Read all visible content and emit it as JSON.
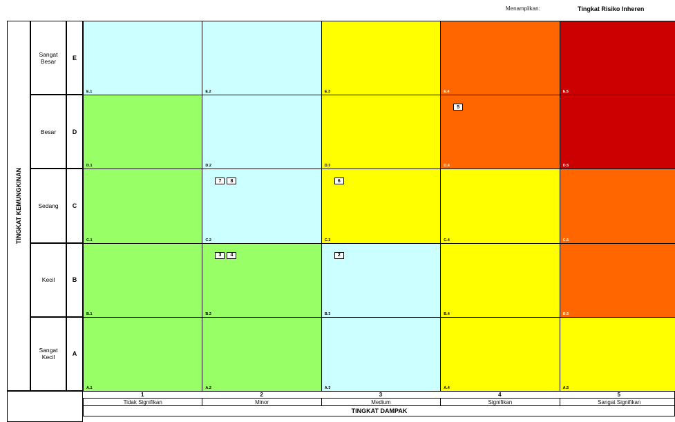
{
  "header": {
    "label": "Menampilkan:",
    "value": "Tingkat Risiko Inheren"
  },
  "y_axis_title": "TINGKAT KEMUNGKINAN",
  "x_axis_title": "TINGKAT DAMPAK",
  "rows": [
    {
      "label": "Sangat Besar",
      "letter": "E"
    },
    {
      "label": "Besar",
      "letter": "D"
    },
    {
      "label": "Sedang",
      "letter": "C"
    },
    {
      "label": "Kecil",
      "letter": "B"
    },
    {
      "label": "Sangat Kecil",
      "letter": "A"
    }
  ],
  "columns": [
    {
      "number": "1",
      "label": "Tidak Signifikan"
    },
    {
      "number": "2",
      "label": "Minor"
    },
    {
      "number": "3",
      "label": "Medium"
    },
    {
      "number": "4",
      "label": "Signifikan"
    },
    {
      "number": "5",
      "label": "Sangat Signifikan"
    }
  ],
  "colors": {
    "green": "#99ff66",
    "cyan": "#ccffff",
    "yellow": "#ffff00",
    "orange": "#ff6600",
    "red": "#cc0000"
  },
  "cells": [
    [
      "cyan",
      "cyan",
      "yellow",
      "orange",
      "red"
    ],
    [
      "green",
      "cyan",
      "yellow",
      "orange",
      "red"
    ],
    [
      "green",
      "cyan",
      "yellow",
      "yellow",
      "orange"
    ],
    [
      "green",
      "green",
      "cyan",
      "yellow",
      "orange"
    ],
    [
      "green",
      "green",
      "cyan",
      "yellow",
      "yellow"
    ]
  ],
  "codes": [
    [
      "E.1",
      "E.2",
      "E.3",
      "E.4",
      "E.5"
    ],
    [
      "D.1",
      "D.2",
      "D.3",
      "D.4",
      "D.5"
    ],
    [
      "C.1",
      "C.2",
      "C.3",
      "C.4",
      "C.5"
    ],
    [
      "B.1",
      "B.2",
      "B.3",
      "B.4",
      "B.5"
    ],
    [
      "A.1",
      "A.2",
      "A.3",
      "A.4",
      "A.5"
    ]
  ],
  "markers": [
    {
      "cell": "D.4",
      "labels": [
        "5"
      ]
    },
    {
      "cell": "C.2",
      "labels": [
        "7",
        "8"
      ]
    },
    {
      "cell": "C.3",
      "labels": [
        "6"
      ]
    },
    {
      "cell": "B.2",
      "labels": [
        "3",
        "4"
      ]
    },
    {
      "cell": "B.3",
      "labels": [
        "2"
      ]
    }
  ]
}
